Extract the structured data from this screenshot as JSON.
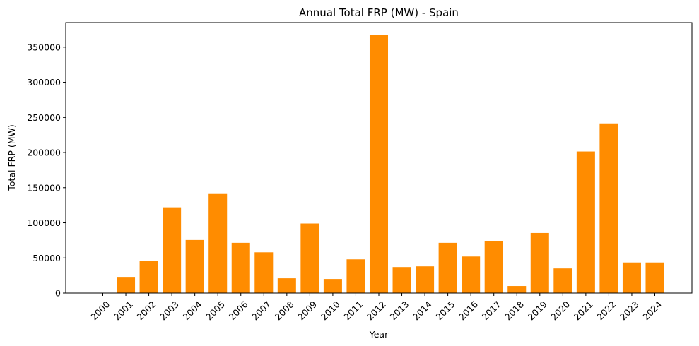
{
  "chart_data": {
    "type": "bar",
    "title": "Annual Total FRP (MW) - Spain",
    "xlabel": "Year",
    "ylabel": "Total FRP (MW)",
    "categories": [
      "2000",
      "2001",
      "2002",
      "2003",
      "2004",
      "2005",
      "2006",
      "2007",
      "2008",
      "2009",
      "2010",
      "2011",
      "2012",
      "2013",
      "2014",
      "2015",
      "2016",
      "2017",
      "2018",
      "2019",
      "2020",
      "2021",
      "2022",
      "2023",
      "2024"
    ],
    "values": [
      0,
      23000,
      46000,
      122000,
      75500,
      141000,
      71500,
      58000,
      21000,
      99000,
      20000,
      48000,
      367500,
      37000,
      38000,
      71500,
      52000,
      73500,
      10000,
      85500,
      35000,
      201500,
      241500,
      43500,
      43500
    ],
    "ylim": [
      0,
      385000
    ],
    "yticks": [
      0,
      50000,
      100000,
      150000,
      200000,
      250000,
      300000,
      350000
    ],
    "bar_color": "#ff8c00",
    "grid": false,
    "x_tick_rotation": -45
  }
}
